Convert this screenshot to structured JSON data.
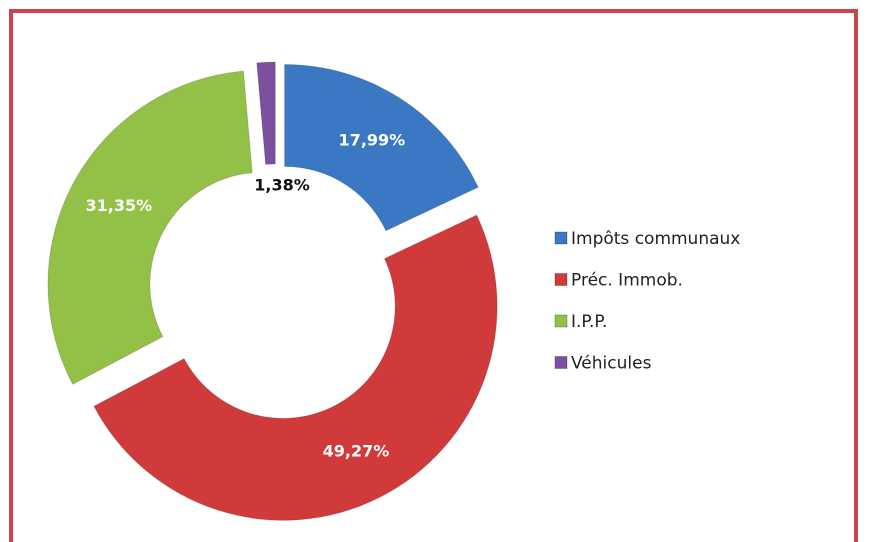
{
  "chart_data": {
    "type": "donut",
    "categories": [
      "Impôts communaux",
      "Préc. Immob.",
      "I.P.P.",
      "Véhicules"
    ],
    "values": [
      17.99,
      49.27,
      31.35,
      1.38
    ],
    "value_labels": [
      "17,99%",
      "49,27%",
      "31,35%",
      "1,38%"
    ],
    "colors": [
      "#3b78c4",
      "#d13a3b",
      "#93c148",
      "#7c4f9f"
    ],
    "legend": "right"
  }
}
